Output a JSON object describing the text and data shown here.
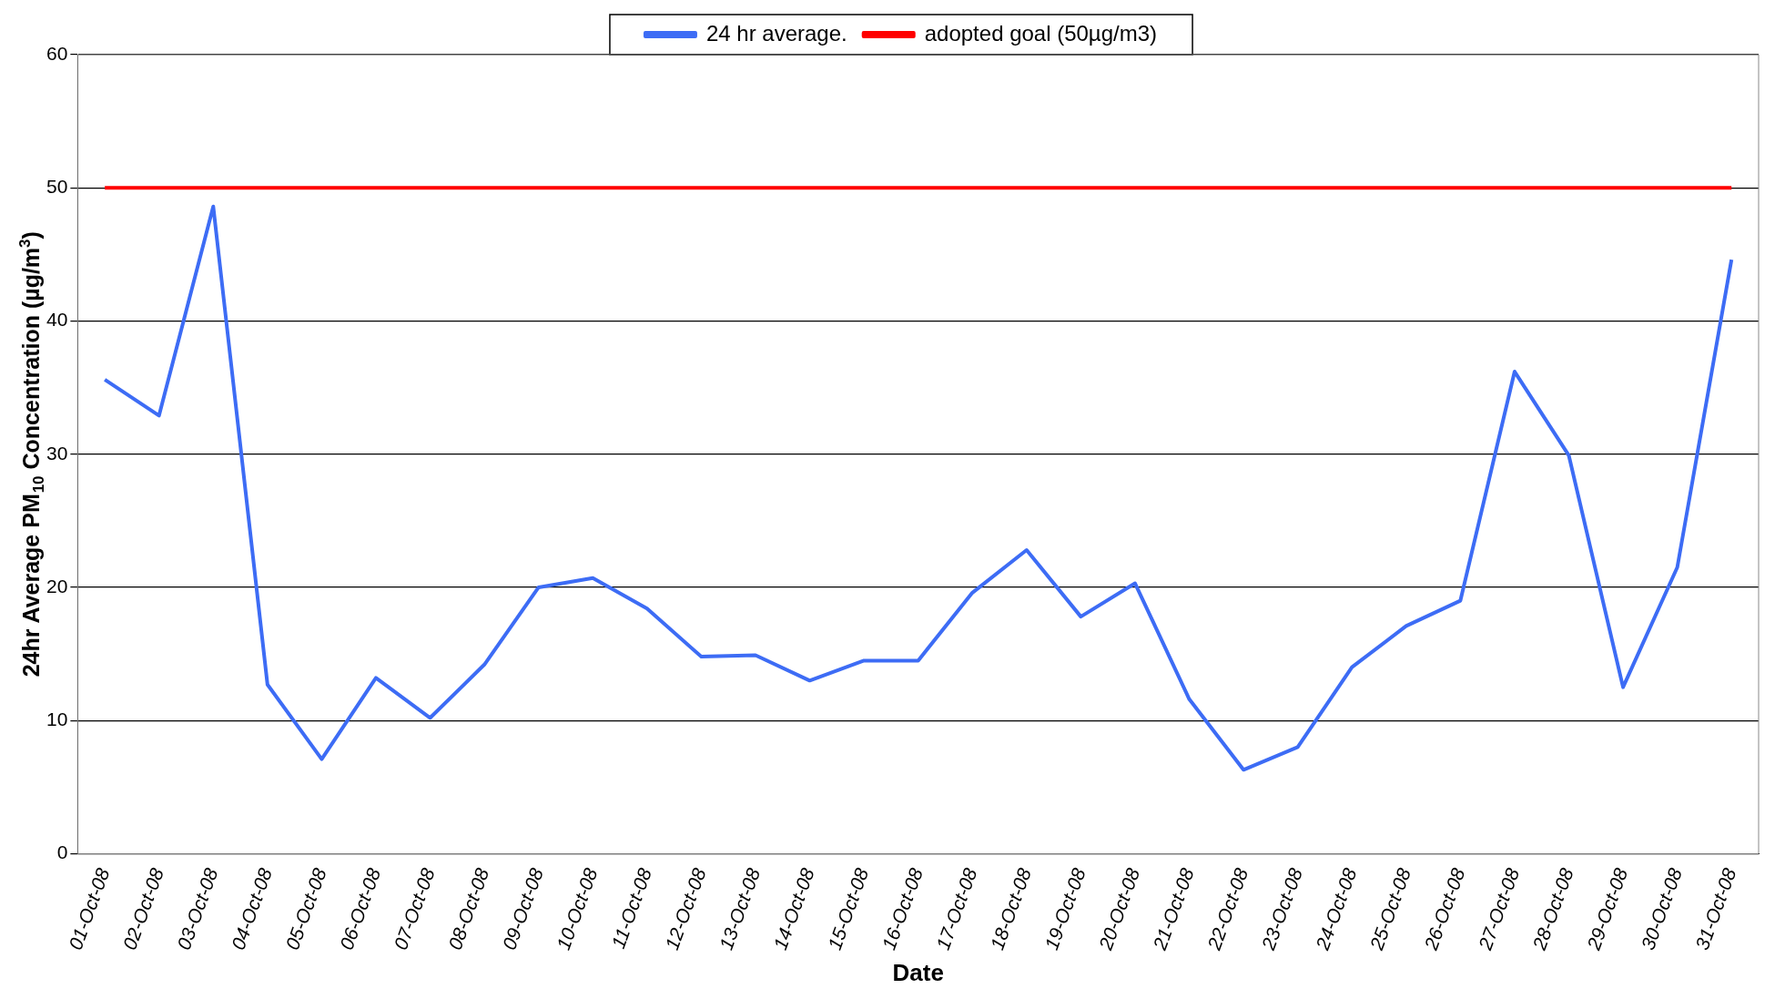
{
  "chart_data": {
    "type": "line",
    "xlabel": "Date",
    "ylabel": "24hr Average PM$_{10}$ Concentration (µg/m$^{3}$)",
    "categories": [
      "01-Oct-08",
      "02-Oct-08",
      "03-Oct-08",
      "04-Oct-08",
      "05-Oct-08",
      "06-Oct-08",
      "07-Oct-08",
      "08-Oct-08",
      "09-Oct-08",
      "10-Oct-08",
      "11-Oct-08",
      "12-Oct-08",
      "13-Oct-08",
      "14-Oct-08",
      "15-Oct-08",
      "16-Oct-08",
      "17-Oct-08",
      "18-Oct-08",
      "19-Oct-08",
      "20-Oct-08",
      "21-Oct-08",
      "22-Oct-08",
      "23-Oct-08",
      "24-Oct-08",
      "25-Oct-08",
      "26-Oct-08",
      "27-Oct-08",
      "28-Oct-08",
      "29-Oct-08",
      "30-Oct-08",
      "31-Oct-08"
    ],
    "series": [
      {
        "name": "24 hr average.",
        "color": "#3d6cf5",
        "values": [
          35.6,
          32.9,
          48.6,
          12.7,
          7.1,
          13.2,
          10.2,
          14.2,
          20.0,
          20.7,
          18.4,
          14.8,
          14.9,
          13.0,
          14.5,
          14.5,
          19.6,
          22.8,
          17.8,
          20.3,
          11.6,
          6.3,
          8.0,
          14.0,
          17.1,
          19.0,
          36.2,
          29.9,
          12.5,
          21.5,
          44.6
        ]
      },
      {
        "name": "adopted goal (50µg/m3)",
        "color": "#ff0000",
        "values": [
          50,
          50,
          50,
          50,
          50,
          50,
          50,
          50,
          50,
          50,
          50,
          50,
          50,
          50,
          50,
          50,
          50,
          50,
          50,
          50,
          50,
          50,
          50,
          50,
          50,
          50,
          50,
          50,
          50,
          50,
          50
        ]
      }
    ],
    "ylim": [
      0,
      60
    ],
    "yticks": [
      0,
      10,
      20,
      30,
      40,
      50,
      60
    ],
    "grid": "y",
    "legend": "top",
    "marker": "none",
    "line_style": "solid"
  }
}
